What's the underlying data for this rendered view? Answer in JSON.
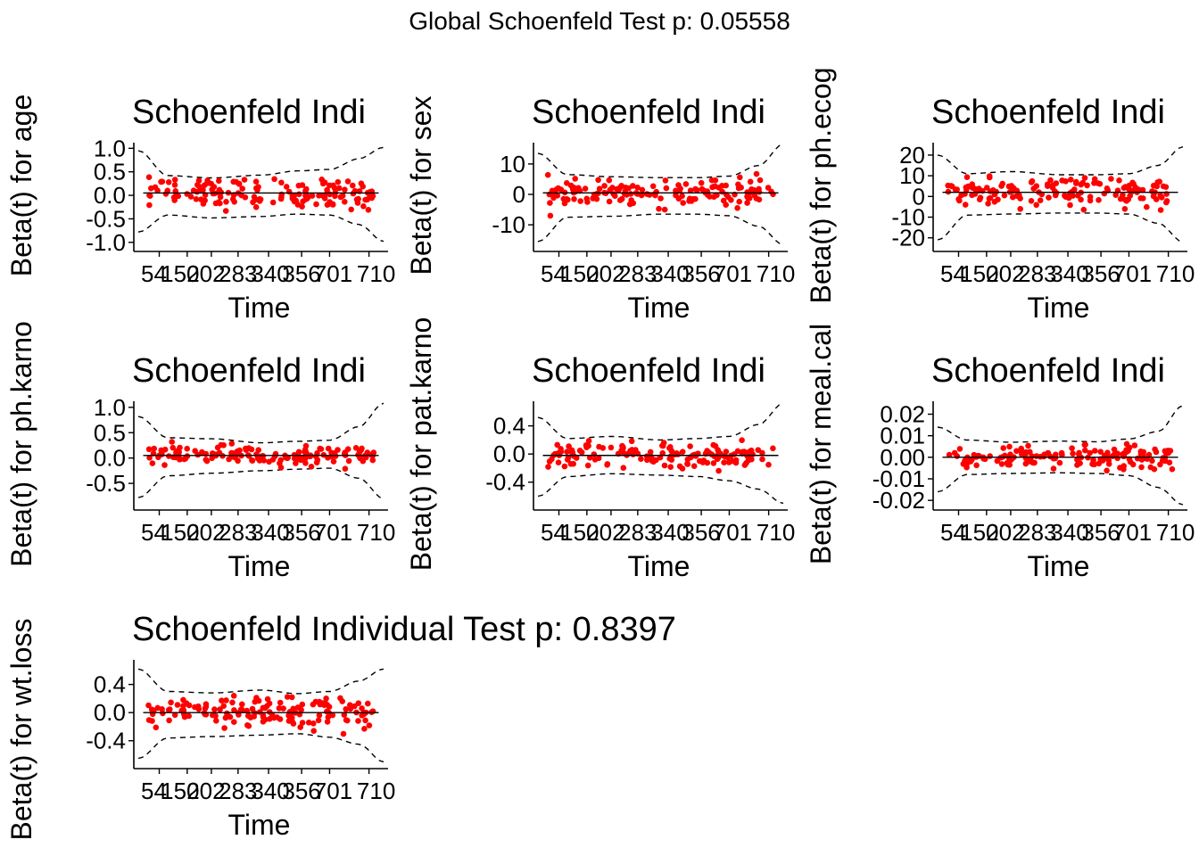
{
  "global_title": "Global Schoenfeld Test p: 0.05558",
  "chart_data": [
    {
      "type": "scatter",
      "title": "Schoenfeld Indi",
      "xlabel": "Time",
      "ylabel": "Beta(t) for age",
      "x_ticks": [
        "54",
        "150",
        "202",
        "283",
        "340",
        "356",
        "701",
        "710"
      ],
      "y_ticks": [
        -1.0,
        -0.5,
        0.0,
        0.5,
        1.0
      ],
      "y_tick_labels": [
        "-1.0",
        "-0.5",
        "0.0",
        "0.5",
        "1.0"
      ],
      "ylim": [
        -1.08,
        1.12
      ],
      "fit": 0.05,
      "band_upper": [
        [
          0.0,
          0.95
        ],
        [
          0.12,
          0.42
        ],
        [
          0.3,
          0.37
        ],
        [
          0.5,
          0.43
        ],
        [
          0.65,
          0.52
        ],
        [
          0.78,
          0.55
        ],
        [
          0.9,
          0.78
        ],
        [
          1.0,
          1.02
        ]
      ],
      "band_lower": [
        [
          0.0,
          -0.78
        ],
        [
          0.12,
          -0.42
        ],
        [
          0.3,
          -0.48
        ],
        [
          0.5,
          -0.45
        ],
        [
          0.65,
          -0.4
        ],
        [
          0.78,
          -0.42
        ],
        [
          0.9,
          -0.62
        ],
        [
          1.0,
          -0.98
        ]
      ],
      "point_color": "#FF0000",
      "grid": false
    },
    {
      "type": "scatter",
      "title": "Schoenfeld Indi",
      "xlabel": "Time",
      "ylabel": "Beta(t) for sex",
      "x_ticks": [
        "54",
        "150",
        "202",
        "283",
        "340",
        "356",
        "701",
        "710"
      ],
      "y_ticks": [
        -10,
        0,
        10
      ],
      "y_tick_labels": [
        "-10",
        "0",
        "10"
      ],
      "ylim": [
        -17,
        17
      ],
      "fit": 0.5,
      "band_upper": [
        [
          0.0,
          13.5
        ],
        [
          0.12,
          6.5
        ],
        [
          0.3,
          5.8
        ],
        [
          0.5,
          5.5
        ],
        [
          0.65,
          5.5
        ],
        [
          0.78,
          6.0
        ],
        [
          0.9,
          9.5
        ],
        [
          1.0,
          16.5
        ]
      ],
      "band_lower": [
        [
          0.0,
          -15.5
        ],
        [
          0.12,
          -7.5
        ],
        [
          0.3,
          -7.2
        ],
        [
          0.5,
          -6.5
        ],
        [
          0.65,
          -6.5
        ],
        [
          0.78,
          -7.0
        ],
        [
          0.9,
          -10.5
        ],
        [
          1.0,
          -16.5
        ]
      ],
      "point_color": "#FF0000",
      "grid": false
    },
    {
      "type": "scatter",
      "title": "Schoenfeld Indi",
      "xlabel": "Time",
      "ylabel": "Beta(t) for ph.ecog",
      "x_ticks": [
        "54",
        "150",
        "202",
        "283",
        "340",
        "356",
        "701",
        "710"
      ],
      "y_ticks": [
        -20,
        -10,
        0,
        10,
        20
      ],
      "y_tick_labels": [
        "-20",
        "-10",
        "0",
        "10",
        "20"
      ],
      "ylim": [
        -24,
        26
      ],
      "fit": 2,
      "band_upper": [
        [
          0.0,
          20
        ],
        [
          0.12,
          11
        ],
        [
          0.3,
          12
        ],
        [
          0.5,
          10.5
        ],
        [
          0.65,
          10.5
        ],
        [
          0.78,
          11
        ],
        [
          0.9,
          15
        ],
        [
          1.0,
          24
        ]
      ],
      "band_lower": [
        [
          0.0,
          -21
        ],
        [
          0.12,
          -9
        ],
        [
          0.3,
          -8.5
        ],
        [
          0.5,
          -8
        ],
        [
          0.65,
          -8
        ],
        [
          0.78,
          -8.5
        ],
        [
          0.9,
          -13
        ],
        [
          1.0,
          -22
        ]
      ],
      "point_color": "#FF0000",
      "grid": false
    },
    {
      "type": "scatter",
      "title": "Schoenfeld Indi",
      "xlabel": "Time",
      "ylabel": "Beta(t) for ph.karno",
      "x_ticks": [
        "54",
        "150",
        "202",
        "283",
        "340",
        "356",
        "701",
        "710"
      ],
      "y_ticks": [
        -0.5,
        0.0,
        0.5,
        1.0
      ],
      "y_tick_labels": [
        "-0.5",
        "0.0",
        "0.5",
        "1.0"
      ],
      "ylim": [
        -0.92,
        1.12
      ],
      "fit": 0.05,
      "band_upper": [
        [
          0.0,
          0.82
        ],
        [
          0.12,
          0.4
        ],
        [
          0.3,
          0.38
        ],
        [
          0.5,
          0.3
        ],
        [
          0.65,
          0.33
        ],
        [
          0.78,
          0.35
        ],
        [
          0.9,
          0.62
        ],
        [
          1.0,
          1.08
        ]
      ],
      "band_lower": [
        [
          0.0,
          -0.78
        ],
        [
          0.12,
          -0.35
        ],
        [
          0.3,
          -0.3
        ],
        [
          0.5,
          -0.25
        ],
        [
          0.65,
          -0.22
        ],
        [
          0.78,
          -0.2
        ],
        [
          0.9,
          -0.4
        ],
        [
          1.0,
          -0.8
        ]
      ],
      "point_color": "#FF0000",
      "grid": false
    },
    {
      "type": "scatter",
      "title": "Schoenfeld Indi",
      "xlabel": "Time",
      "ylabel": "Beta(t) for pat.karno",
      "x_ticks": [
        "54",
        "150",
        "202",
        "283",
        "340",
        "356",
        "701",
        "710"
      ],
      "y_ticks": [
        -0.4,
        0.0,
        0.4
      ],
      "y_tick_labels": [
        "-0.4",
        "0.0",
        "0.4"
      ],
      "ylim": [
        -0.72,
        0.75
      ],
      "fit": -0.02,
      "band_upper": [
        [
          0.0,
          0.52
        ],
        [
          0.12,
          0.22
        ],
        [
          0.3,
          0.25
        ],
        [
          0.5,
          0.2
        ],
        [
          0.65,
          0.22
        ],
        [
          0.78,
          0.25
        ],
        [
          0.9,
          0.42
        ],
        [
          1.0,
          0.72
        ]
      ],
      "band_lower": [
        [
          0.0,
          -0.6
        ],
        [
          0.12,
          -0.32
        ],
        [
          0.3,
          -0.28
        ],
        [
          0.5,
          -0.3
        ],
        [
          0.65,
          -0.32
        ],
        [
          0.78,
          -0.38
        ],
        [
          0.9,
          -0.5
        ],
        [
          1.0,
          -0.7
        ]
      ],
      "point_color": "#FF0000",
      "grid": false
    },
    {
      "type": "scatter",
      "title": "Schoenfeld Indi",
      "xlabel": "Time",
      "ylabel": "Beta(t) for meal.cal",
      "x_ticks": [
        "54",
        "150",
        "202",
        "283",
        "340",
        "356",
        "701",
        "710"
      ],
      "y_ticks": [
        -0.02,
        -0.01,
        0.0,
        0.01,
        0.02
      ],
      "y_tick_labels": [
        "-0.02",
        "-0.01",
        "0.00",
        "0.01",
        "0.02"
      ],
      "ylim": [
        -0.022,
        0.026
      ],
      "fit": 0.0,
      "band_upper": [
        [
          0.0,
          0.014
        ],
        [
          0.12,
          0.008
        ],
        [
          0.3,
          0.007
        ],
        [
          0.5,
          0.0075
        ],
        [
          0.65,
          0.0072
        ],
        [
          0.78,
          0.0085
        ],
        [
          0.9,
          0.012
        ],
        [
          1.0,
          0.024
        ]
      ],
      "band_lower": [
        [
          0.0,
          -0.016
        ],
        [
          0.12,
          -0.008
        ],
        [
          0.3,
          -0.0075
        ],
        [
          0.5,
          -0.0072
        ],
        [
          0.65,
          -0.0075
        ],
        [
          0.78,
          -0.0085
        ],
        [
          0.9,
          -0.014
        ],
        [
          1.0,
          -0.022
        ]
      ],
      "point_color": "#FF0000",
      "grid": false
    },
    {
      "type": "scatter",
      "title": "Schoenfeld Individual Test p: 0.8397",
      "xlabel": "Time",
      "ylabel": "Beta(t) for wt.loss",
      "x_ticks": [
        "54",
        "150",
        "202",
        "283",
        "340",
        "356",
        "701",
        "710"
      ],
      "y_ticks": [
        -0.4,
        0.0,
        0.4
      ],
      "y_tick_labels": [
        "-0.4",
        "0.0",
        "0.4"
      ],
      "ylim": [
        -0.72,
        0.75
      ],
      "fit": 0.0,
      "band_upper": [
        [
          0.0,
          0.62
        ],
        [
          0.12,
          0.3
        ],
        [
          0.3,
          0.28
        ],
        [
          0.5,
          0.32
        ],
        [
          0.65,
          0.27
        ],
        [
          0.78,
          0.3
        ],
        [
          0.9,
          0.45
        ],
        [
          1.0,
          0.62
        ]
      ],
      "band_lower": [
        [
          0.0,
          -0.65
        ],
        [
          0.12,
          -0.36
        ],
        [
          0.3,
          -0.34
        ],
        [
          0.5,
          -0.32
        ],
        [
          0.65,
          -0.3
        ],
        [
          0.78,
          -0.35
        ],
        [
          0.9,
          -0.45
        ],
        [
          1.0,
          -0.7
        ]
      ],
      "point_color": "#FF0000",
      "grid": false
    }
  ]
}
